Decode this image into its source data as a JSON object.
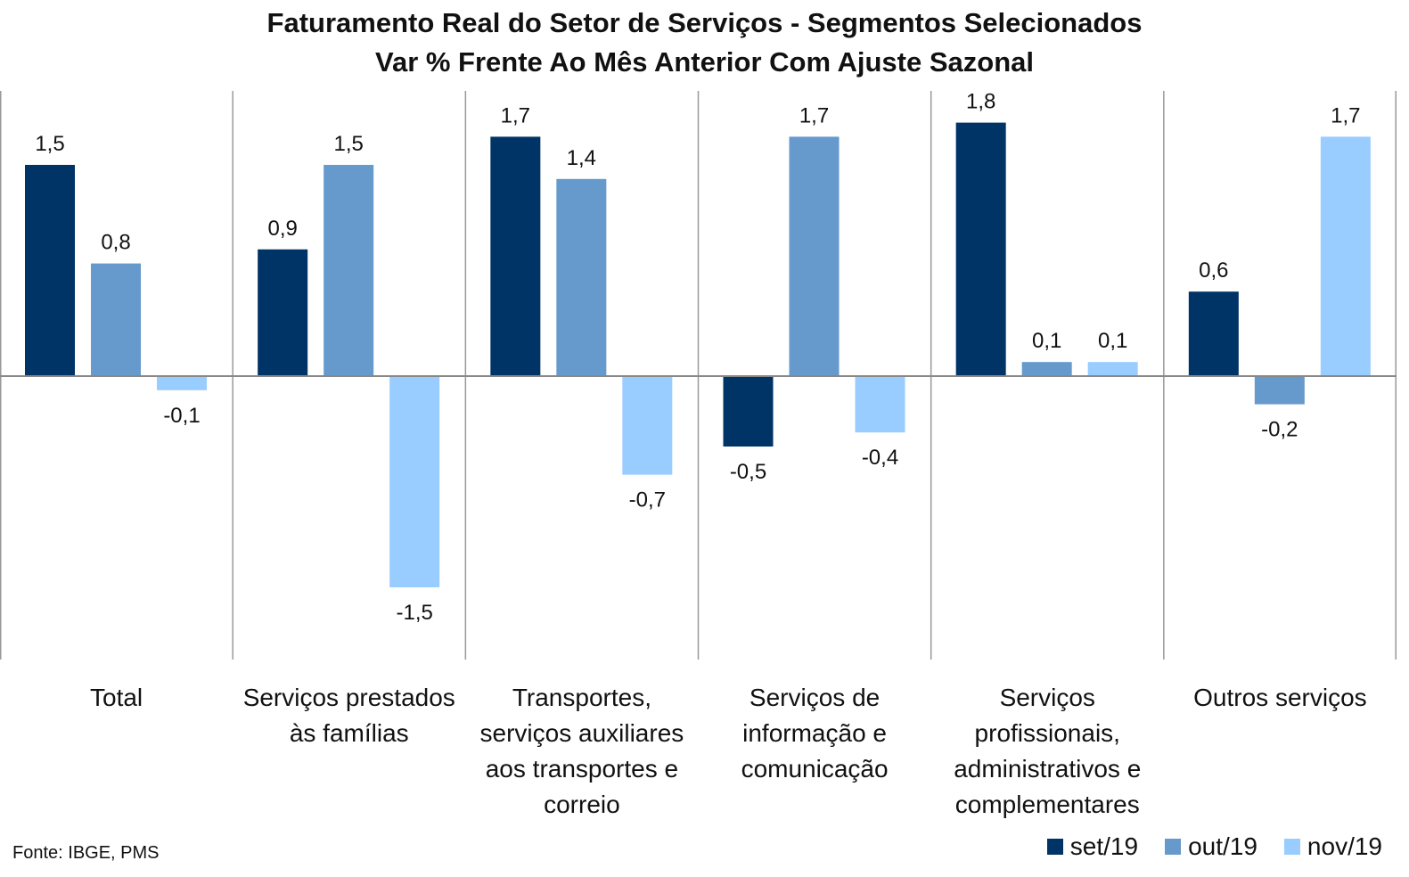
{
  "chart_data": {
    "type": "bar",
    "title": "Faturamento Real do Setor de Serviços - Segmentos Selecionados",
    "subtitle": "Var % Frente Ao Mês Anterior Com Ajuste Sazonal",
    "categories": [
      [
        "Total"
      ],
      [
        "Serviços prestados",
        "às famílias"
      ],
      [
        "Transportes,",
        "serviços auxiliares",
        "aos transportes e",
        "correio"
      ],
      [
        "Serviços de",
        "informação e",
        "comunicação"
      ],
      [
        "Serviços",
        "profissionais,",
        "administrativos e",
        "complementares"
      ],
      [
        "Outros serviços"
      ]
    ],
    "series": [
      {
        "name": "set/19",
        "color": "#003366",
        "values": [
          1.5,
          0.9,
          1.7,
          -0.5,
          1.8,
          0.6
        ],
        "labels": [
          "1,5",
          "0,9",
          "1,7",
          "-0,5",
          "1,8",
          "0,6"
        ]
      },
      {
        "name": "out/19",
        "color": "#6699CC",
        "values": [
          0.8,
          1.5,
          1.4,
          1.7,
          0.1,
          -0.2
        ],
        "labels": [
          "0,8",
          "1,5",
          "1,4",
          "1,7",
          "0,1",
          "-0,2"
        ]
      },
      {
        "name": "nov/19",
        "color": "#99CCFF",
        "values": [
          -0.1,
          -1.5,
          -0.7,
          -0.4,
          0.1,
          1.7
        ],
        "labels": [
          "-0,1",
          "-1,5",
          "-0,7",
          "-0,4",
          "0,1",
          "1,7"
        ]
      }
    ],
    "ylim": [
      -2.0,
      2.0
    ],
    "legend": "bottom-right",
    "grid": false
  },
  "source": "Fonte: IBGE, PMS"
}
